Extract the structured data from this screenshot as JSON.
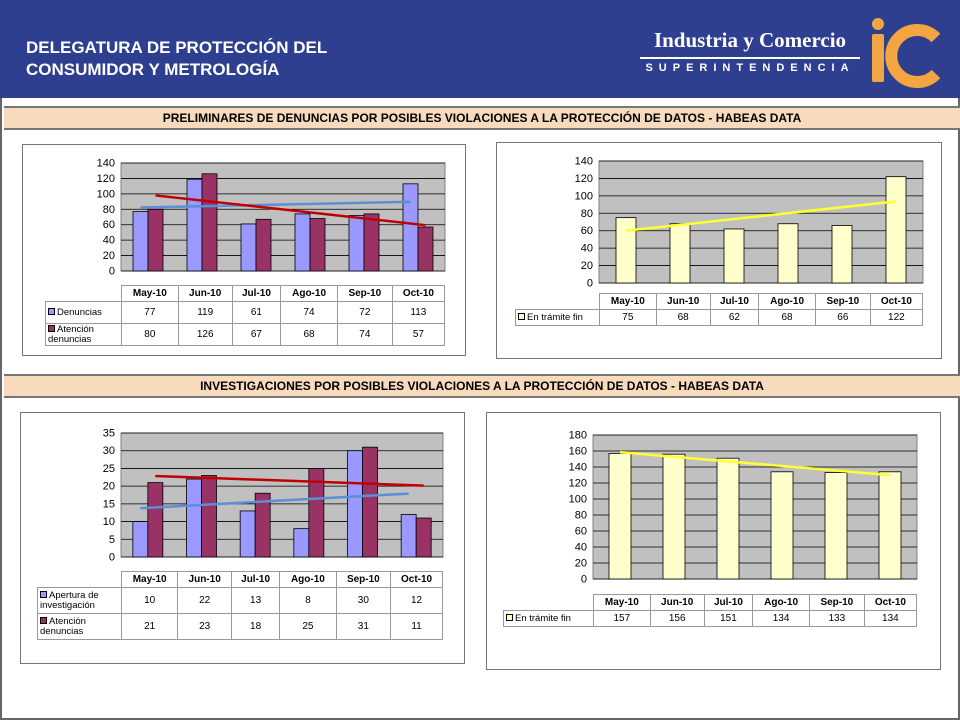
{
  "header": {
    "title_line1": "DELEGATURA DE PROTECCIÓN DEL",
    "title_line2": "CONSUMIDOR Y METROLOGÍA",
    "brand_main": "Industria y Comercio",
    "brand_sub": "SUPERINTENDENCIA",
    "bg_color": "#2e3f8f",
    "logo_color": "#f2a540"
  },
  "sections": [
    {
      "title": "PRELIMINARES DE  DENUNCIAS POR POSIBLES VIOLACIONES A LA PROTECCIÓN DE DATOS - HABEAS DATA"
    },
    {
      "title": "INVESTIGACIONES POR POSIBLES VIOLACIONES A LA PROTECCIÓN DE DATOS  - HABEAS DATA"
    }
  ],
  "chart_data": [
    {
      "type": "bar",
      "categories": [
        "May-10",
        "Jun-10",
        "Jul-10",
        "Ago-10",
        "Sep-10",
        "Oct-10"
      ],
      "series": [
        {
          "name": "Denuncias",
          "values": [
            77,
            119,
            61,
            74,
            72,
            113
          ],
          "color": "#9999ff"
        },
        {
          "name": "Atención denuncias",
          "values": [
            80,
            126,
            67,
            68,
            74,
            57
          ],
          "color": "#993366"
        }
      ],
      "trendlines": [
        {
          "series": "Denuncias",
          "color": "#5b8fd6"
        },
        {
          "series": "Atención denuncias",
          "color": "#c00000"
        }
      ],
      "ylim": [
        0,
        140
      ],
      "yticks": [
        0,
        20,
        40,
        60,
        80,
        100,
        120,
        140
      ],
      "grid": true,
      "legend": "table-below"
    },
    {
      "type": "bar",
      "categories": [
        "May-10",
        "Jun-10",
        "Jul-10",
        "Ago-10",
        "Sep-10",
        "Oct-10"
      ],
      "series": [
        {
          "name": "En trámite fin",
          "values": [
            75,
            68,
            62,
            68,
            66,
            122
          ],
          "color": "#ffffcc"
        }
      ],
      "trendlines": [
        {
          "series": "En trámite fin",
          "color": "#ffff33"
        }
      ],
      "ylim": [
        0,
        140
      ],
      "yticks": [
        0,
        20,
        40,
        60,
        80,
        100,
        120,
        140
      ],
      "grid": true,
      "legend": "table-below"
    },
    {
      "type": "bar",
      "categories": [
        "May-10",
        "Jun-10",
        "Jul-10",
        "Ago-10",
        "Sep-10",
        "Oct-10"
      ],
      "series": [
        {
          "name": "Apertura de investigación",
          "values": [
            10,
            22,
            13,
            8,
            30,
            12
          ],
          "color": "#9999ff"
        },
        {
          "name": "Atención denuncias",
          "values": [
            21,
            23,
            18,
            25,
            31,
            11
          ],
          "color": "#993366"
        }
      ],
      "trendlines": [
        {
          "series": "Apertura de investigación",
          "color": "#5b8fd6"
        },
        {
          "series": "Atención denuncias",
          "color": "#c00000"
        }
      ],
      "ylim": [
        0,
        35
      ],
      "yticks": [
        0,
        5,
        10,
        15,
        20,
        25,
        30,
        35
      ],
      "grid": true,
      "legend": "table-below"
    },
    {
      "type": "bar",
      "categories": [
        "May-10",
        "Jun-10",
        "Jul-10",
        "Ago-10",
        "Sep-10",
        "Oct-10"
      ],
      "series": [
        {
          "name": "En trámite fin",
          "values": [
            157,
            156,
            151,
            134,
            133,
            134
          ],
          "color": "#ffffcc"
        }
      ],
      "trendlines": [
        {
          "series": "En trámite fin",
          "color": "#ffff33"
        }
      ],
      "ylim": [
        0,
        180
      ],
      "yticks": [
        0,
        20,
        40,
        60,
        80,
        100,
        120,
        140,
        160,
        180
      ],
      "grid": true,
      "legend": "table-below"
    }
  ]
}
